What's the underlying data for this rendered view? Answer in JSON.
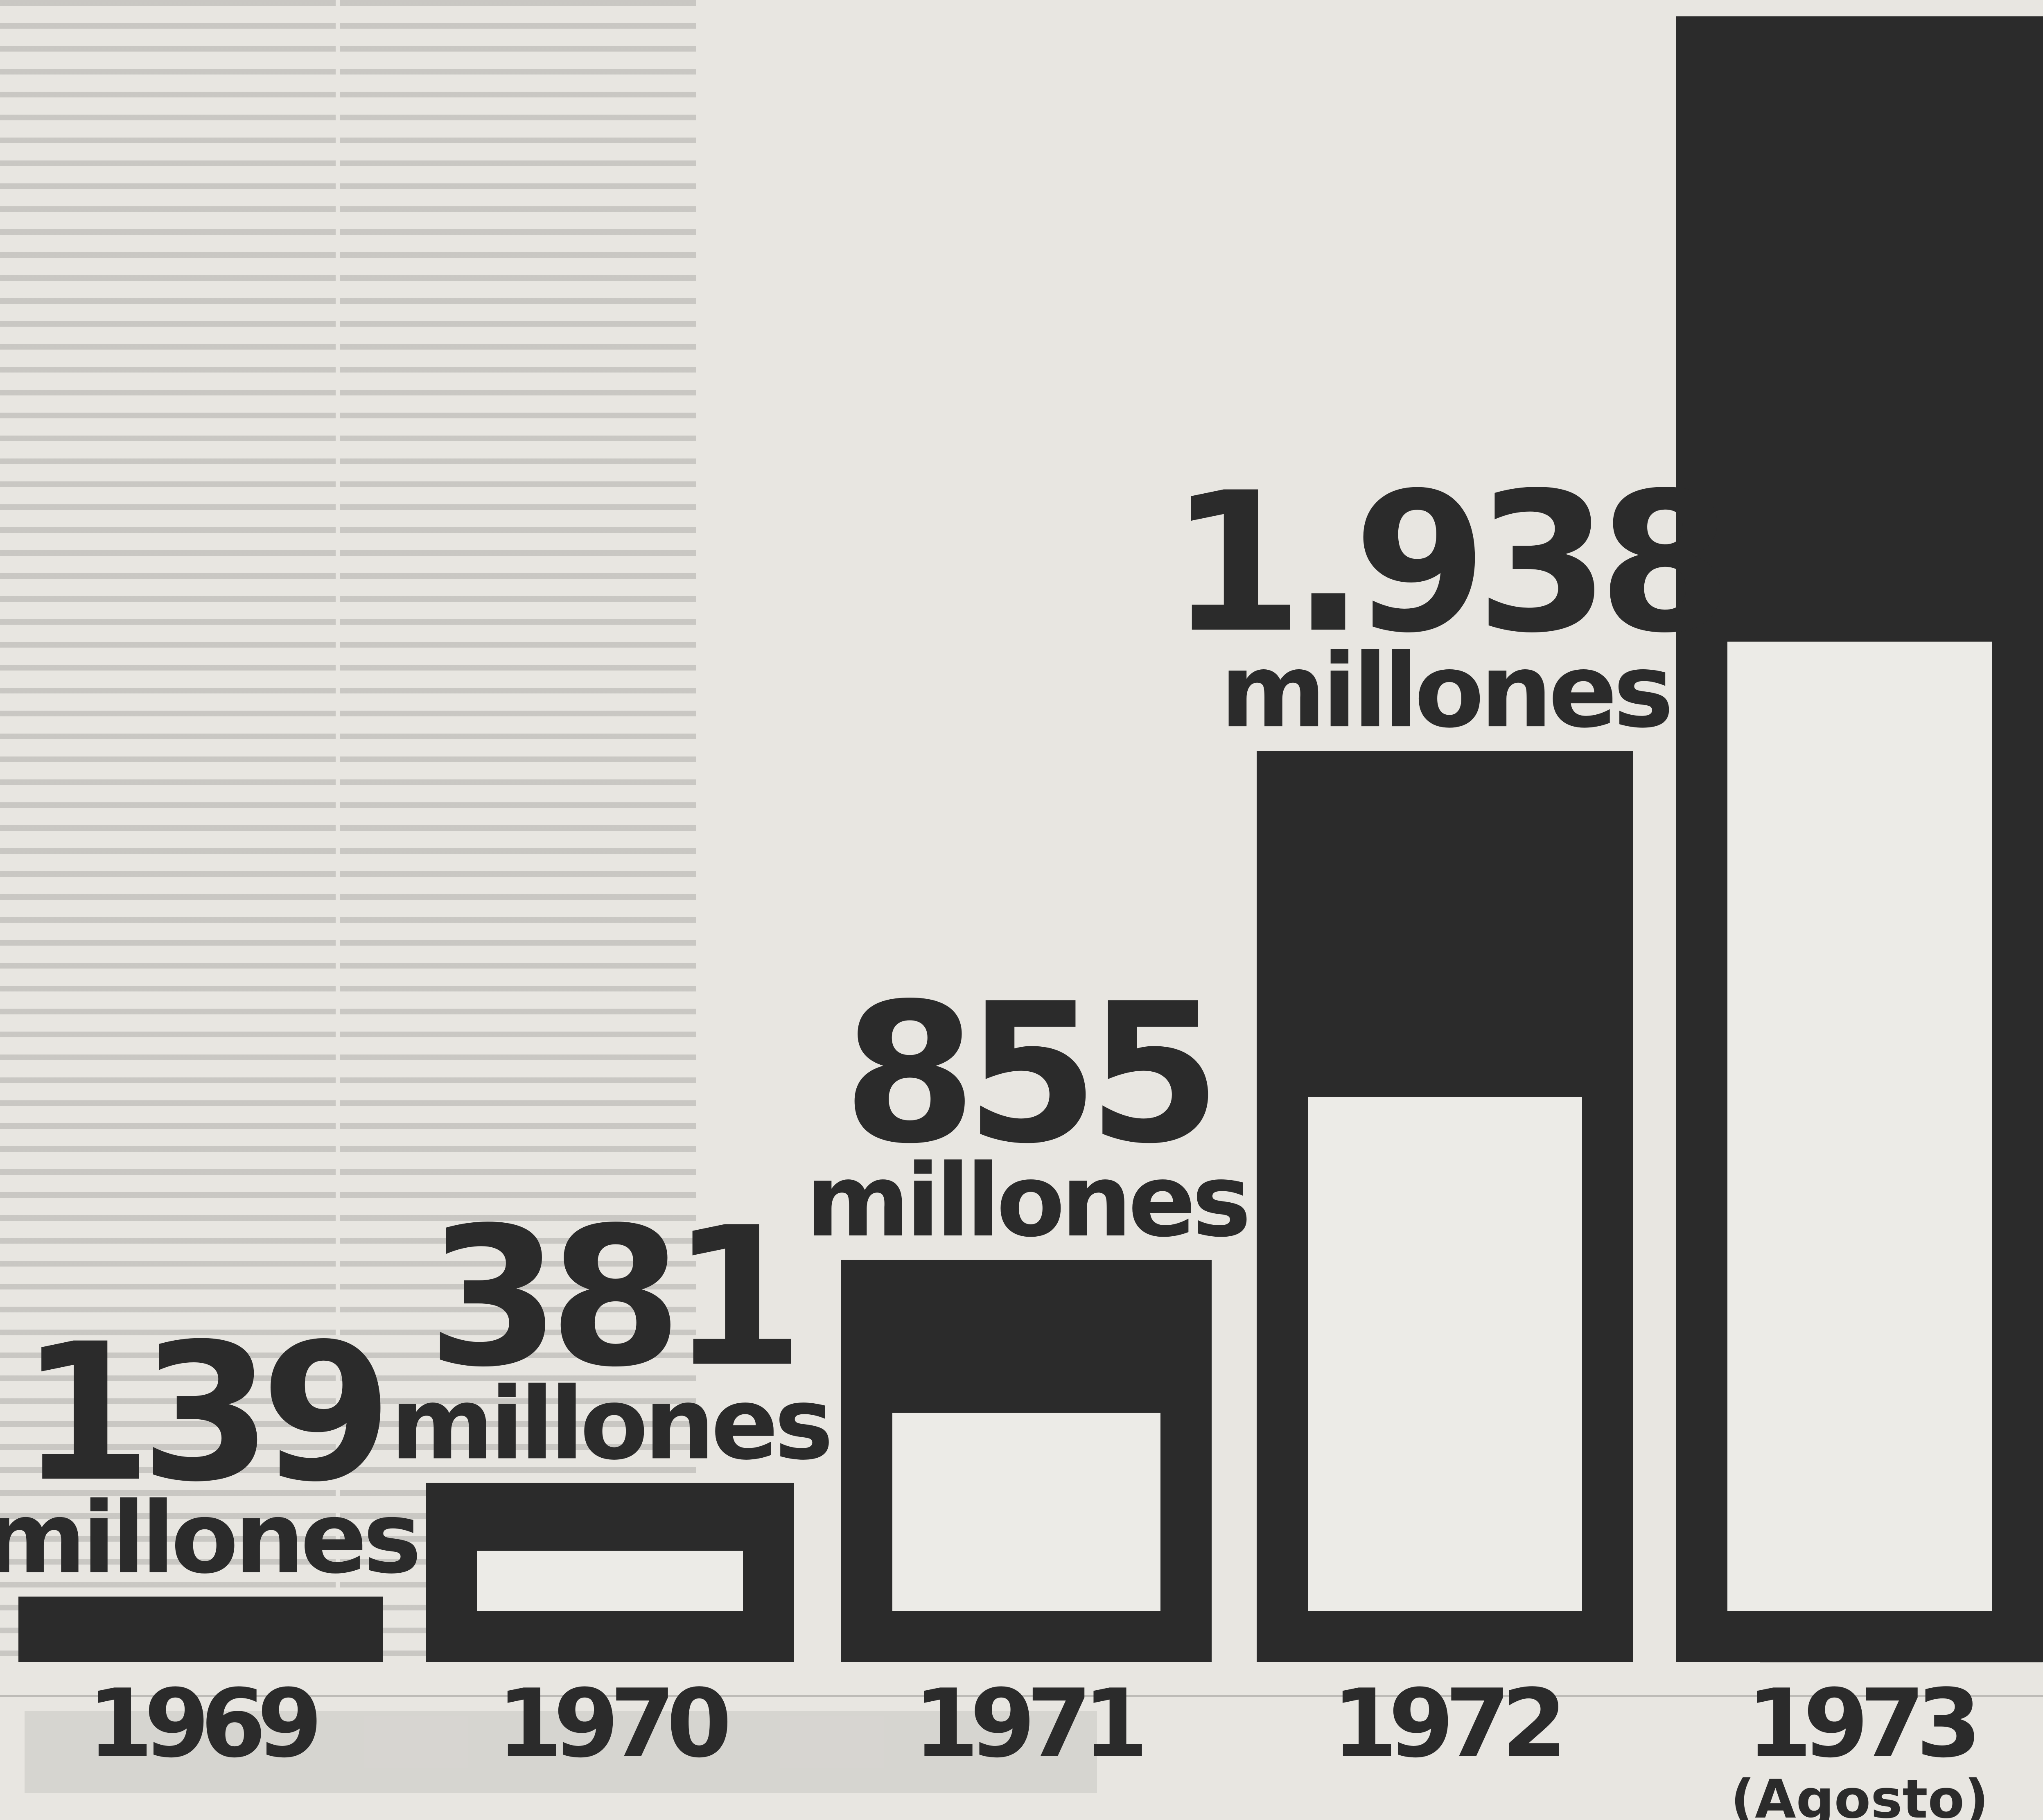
{
  "chart_data": {
    "type": "bar",
    "title": "",
    "xlabel": "",
    "ylabel": "",
    "categories": [
      "1969",
      "1970",
      "1971",
      "1972",
      "1973"
    ],
    "category_notes": [
      "",
      "",
      "",
      "",
      "(Agosto)"
    ],
    "values": [
      139,
      381,
      855,
      1938,
      3500
    ],
    "value_labels": [
      "139",
      "381",
      "855",
      "1.938",
      ""
    ],
    "unit_labels": [
      "millones",
      "millones",
      "millones",
      "millones",
      ""
    ],
    "ylim": [
      0,
      3500
    ],
    "grid": false,
    "legend": "none",
    "colors": {
      "bar": "#2b2b2b",
      "inner": "#ecebe7",
      "background": "#e8e6e1"
    }
  }
}
